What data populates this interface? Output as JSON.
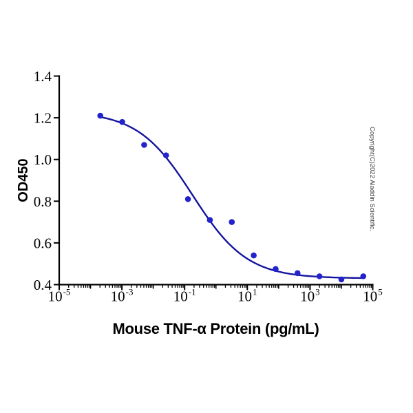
{
  "figure": {
    "watermark": "Copyright(C)2022 Aladdin Scientific."
  },
  "chart_data": {
    "type": "scatter",
    "title": "",
    "xlabel": "Mouse TNF-α Protein (pg/mL)",
    "ylabel": "OD450",
    "x_scale": "log10",
    "xlim_log10": [
      -5,
      5
    ],
    "x_tick_base": "10",
    "x_major_tick_exponents": [
      -5,
      -3,
      -1,
      1,
      3,
      5
    ],
    "ylim": [
      0.4,
      1.4
    ],
    "y_ticks": [
      0.4,
      0.6,
      0.8,
      1.0,
      1.2,
      1.4
    ],
    "grid": false,
    "legend": "none",
    "axis_color": "#000000",
    "series": [
      {
        "name": "standard-curve-points",
        "type": "scatter",
        "marker": "circle",
        "color": "#2323cb",
        "points": [
          {
            "x_pg_ml": 0.0002048,
            "od450": 1.21
          },
          {
            "x_pg_ml": 0.001024,
            "od450": 1.18
          },
          {
            "x_pg_ml": 0.00512,
            "od450": 1.07
          },
          {
            "x_pg_ml": 0.0256,
            "od450": 1.02
          },
          {
            "x_pg_ml": 0.128,
            "od450": 0.81
          },
          {
            "x_pg_ml": 0.64,
            "od450": 0.71
          },
          {
            "x_pg_ml": 3.2,
            "od450": 0.7
          },
          {
            "x_pg_ml": 16,
            "od450": 0.54
          },
          {
            "x_pg_ml": 80,
            "od450": 0.475
          },
          {
            "x_pg_ml": 400,
            "od450": 0.455
          },
          {
            "x_pg_ml": 2000,
            "od450": 0.44
          },
          {
            "x_pg_ml": 10000,
            "od450": 0.425
          },
          {
            "x_pg_ml": 50000,
            "od450": 0.44
          }
        ]
      },
      {
        "name": "4pl-fit-curve",
        "type": "line",
        "color": "#14149e",
        "fit_4pl": {
          "top": 1.23,
          "bottom": 0.43,
          "log10_ec50": -0.75,
          "hill": 0.5
        },
        "x_log10_range": [
          -3.689,
          4.699
        ]
      }
    ]
  }
}
